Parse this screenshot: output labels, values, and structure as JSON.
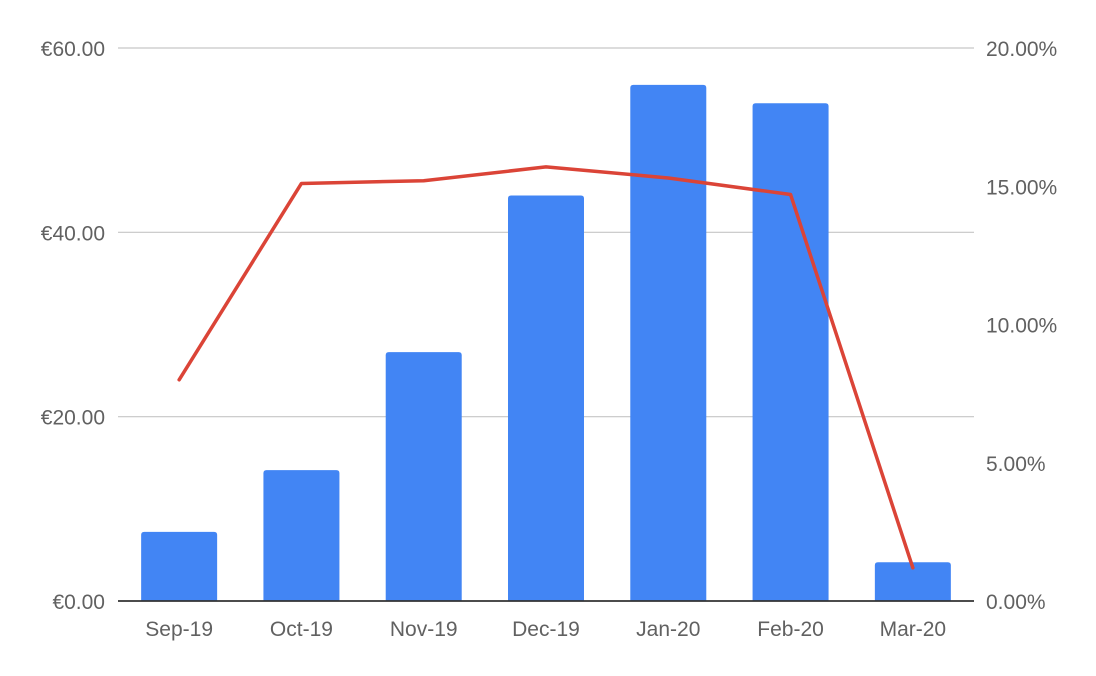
{
  "chart_data": {
    "type": "bar",
    "title": "",
    "xlabel": "",
    "ylabel": "",
    "categories": [
      "Sep-19",
      "Oct-19",
      "Nov-19",
      "Dec-19",
      "Jan-20",
      "Feb-20",
      "Mar-20"
    ],
    "series": [
      {
        "type": "bar",
        "axis": "left",
        "color": "#4285f4",
        "values": [
          7.5,
          14.2,
          27.0,
          44.0,
          56.0,
          54.0,
          4.2
        ]
      },
      {
        "type": "line",
        "axis": "right",
        "color": "#db4437",
        "values": [
          8.0,
          15.1,
          15.2,
          15.7,
          15.3,
          14.7,
          1.2
        ]
      }
    ],
    "ylim_left": [
      0,
      60
    ],
    "ylim_right": [
      0,
      20
    ],
    "yticks_left": [
      "€0.00",
      "€20.00",
      "€40.00",
      "€60.00"
    ],
    "yticks_right": [
      "0.00%",
      "5.00%",
      "10.00%",
      "15.00%",
      "20.00%"
    ],
    "grid": true,
    "legend": "none"
  }
}
